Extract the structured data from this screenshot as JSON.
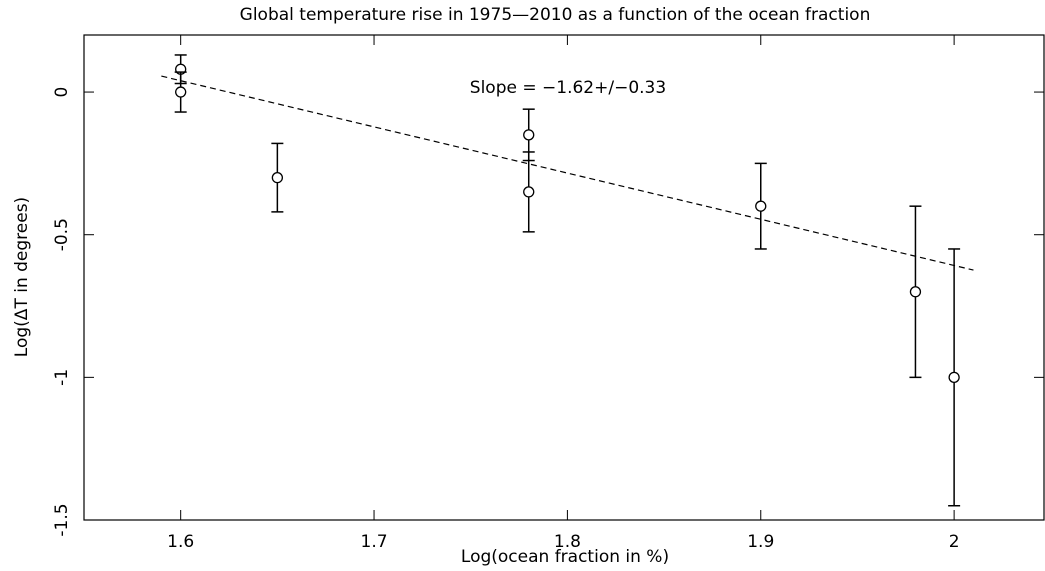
{
  "chart_data": {
    "type": "scatter",
    "title": "Global temperature rise in 1975—2010 as a function of the ocean fraction",
    "x_label": "Log(ocean fraction in %)",
    "y_label": "Log(ΔT in degrees)",
    "annotation": "Slope = −1.62+/−0.33",
    "series": [
      {
        "color": "#000000",
        "x": [
          1.6,
          1.6,
          1.65,
          1.78,
          1.78,
          1.9,
          1.98,
          2.0
        ],
        "values": [
          0.08,
          0.0,
          -0.3,
          -0.15,
          -0.35,
          -0.4,
          -0.7,
          -1.0
        ],
        "errors": [
          0.05,
          0.07,
          0.12,
          0.09,
          0.14,
          0.15,
          0.3,
          0.45
        ]
      }
    ],
    "fit": {
      "color": "#000000",
      "x": [
        1.59,
        2.01
      ],
      "values": [
        0.056,
        -0.624
      ]
    },
    "xlim": [
      1.55,
      2.047
    ],
    "ylim": [
      -1.5,
      0.2
    ],
    "xticks": [
      1.6,
      1.7,
      1.8,
      1.9,
      2
    ],
    "yticks": [
      0,
      -0.5,
      -1,
      -1.5
    ]
  }
}
